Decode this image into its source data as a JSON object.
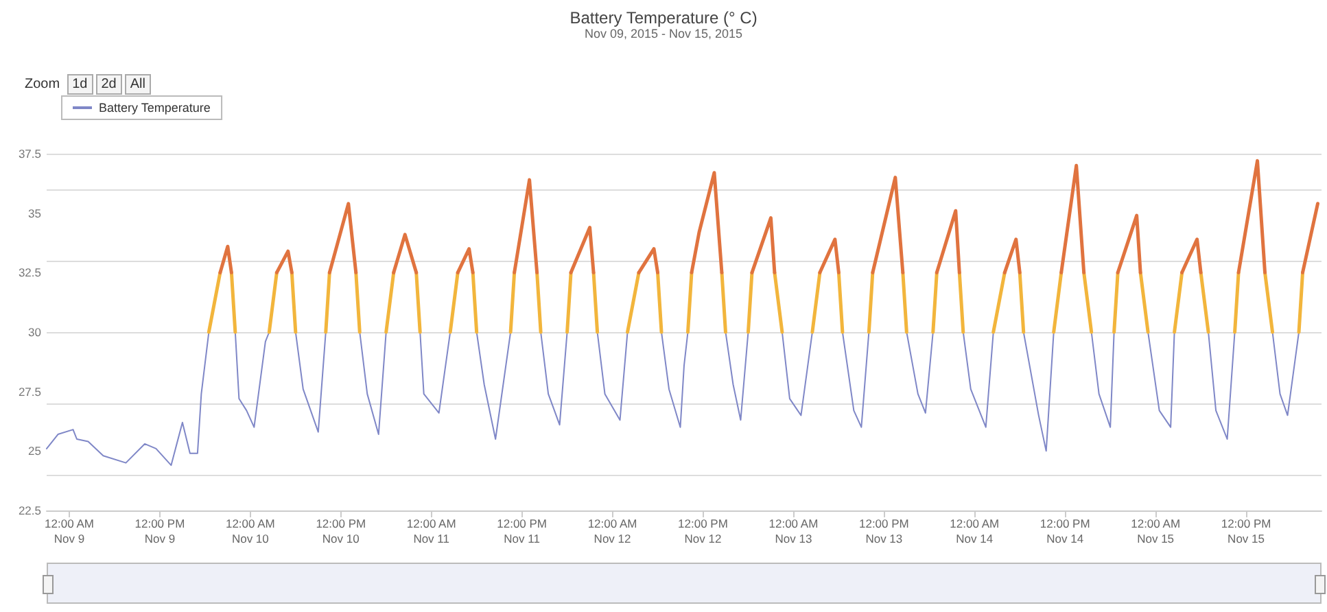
{
  "chart_data": {
    "type": "line",
    "title": "Battery Temperature (° C)",
    "subtitle": "Nov 09, 2015 - Nov 15, 2015",
    "annotations": [
      "Zoom",
      "1d",
      "2d",
      "All"
    ],
    "x": [
      "2015-11-08T21:00",
      "2015-11-08T22:30",
      "2015-11-09T00:30",
      "2015-11-09T01:00",
      "2015-11-09T02:30",
      "2015-11-09T04:30",
      "2015-11-09T07:30",
      "2015-11-09T10:00",
      "2015-11-09T11:30",
      "2015-11-09T13:30",
      "2015-11-09T15:00",
      "2015-11-09T16:00",
      "2015-11-09T17:00",
      "2015-11-09T17:30",
      "2015-11-09T18:30",
      "2015-11-09T20:00",
      "2015-11-09T21:00",
      "2015-11-09T21:30",
      "2015-11-09T22:00",
      "2015-11-09T22:30",
      "2015-11-09T23:30",
      "2015-11-10T00:30",
      "2015-11-10T02:00",
      "2015-11-10T02:30",
      "2015-11-10T03:30",
      "2015-11-10T05:00",
      "2015-11-10T05:30",
      "2015-11-10T06:00",
      "2015-11-10T07:00",
      "2015-11-10T09:00",
      "2015-11-10T10:00",
      "2015-11-10T10:30",
      "2015-11-10T13:00",
      "2015-11-10T14:00",
      "2015-11-10T14:30",
      "2015-11-10T15:30",
      "2015-11-10T17:00",
      "2015-11-10T18:00",
      "2015-11-10T19:00",
      "2015-11-10T20:30",
      "2015-11-10T22:00",
      "2015-11-10T22:30",
      "2015-11-10T23:00",
      "2015-11-11T01:00",
      "2015-11-11T02:30",
      "2015-11-11T03:30",
      "2015-11-11T05:00",
      "2015-11-11T05:30",
      "2015-11-11T06:00",
      "2015-11-11T07:00",
      "2015-11-11T08:30",
      "2015-11-11T10:30",
      "2015-11-11T11:00",
      "2015-11-11T13:00",
      "2015-11-11T14:00",
      "2015-11-11T14:30",
      "2015-11-11T15:30",
      "2015-11-11T17:00",
      "2015-11-11T18:00",
      "2015-11-11T18:30",
      "2015-11-11T21:00",
      "2015-11-11T21:30",
      "2015-11-11T22:00",
      "2015-11-11T23:00",
      "2015-11-12T01:00",
      "2015-11-12T02:00",
      "2015-11-12T03:30",
      "2015-11-12T05:30",
      "2015-11-12T06:00",
      "2015-11-12T06:30",
      "2015-11-12T07:30",
      "2015-11-12T09:00",
      "2015-11-12T09:30",
      "2015-11-12T10:00",
      "2015-11-12T10:30",
      "2015-11-12T11:30",
      "2015-11-12T13:30",
      "2015-11-12T14:30",
      "2015-11-12T15:00",
      "2015-11-12T16:00",
      "2015-11-12T17:00",
      "2015-11-12T18:00",
      "2015-11-12T18:30",
      "2015-11-12T21:00",
      "2015-11-12T21:30",
      "2015-11-12T22:30",
      "2015-11-12T23:30",
      "2015-11-13T01:00",
      "2015-11-13T02:30",
      "2015-11-13T03:30",
      "2015-11-13T05:30",
      "2015-11-13T06:00",
      "2015-11-13T06:30",
      "2015-11-13T08:00",
      "2015-11-13T09:00",
      "2015-11-13T10:00",
      "2015-11-13T10:30",
      "2015-11-13T13:30",
      "2015-11-13T14:30",
      "2015-11-13T15:00",
      "2015-11-13T16:30",
      "2015-11-13T17:30",
      "2015-11-13T18:30",
      "2015-11-13T19:00",
      "2015-11-13T21:30",
      "2015-11-13T22:00",
      "2015-11-13T22:30",
      "2015-11-13T23:30",
      "2015-11-14T01:30",
      "2015-11-14T02:30",
      "2015-11-14T04:00",
      "2015-11-14T05:30",
      "2015-11-14T06:00",
      "2015-11-14T06:30",
      "2015-11-14T08:30",
      "2015-11-14T09:30",
      "2015-11-14T10:30",
      "2015-11-14T11:30",
      "2015-11-14T13:30",
      "2015-11-14T14:30",
      "2015-11-14T15:30",
      "2015-11-14T16:30",
      "2015-11-14T18:00",
      "2015-11-14T18:30",
      "2015-11-14T19:00",
      "2015-11-14T21:30",
      "2015-11-14T22:00",
      "2015-11-14T23:00",
      "2015-11-15T00:30",
      "2015-11-15T02:00",
      "2015-11-15T02:30",
      "2015-11-15T03:30",
      "2015-11-15T05:30",
      "2015-11-15T06:00",
      "2015-11-15T07:00",
      "2015-11-15T08:00",
      "2015-11-15T09:30",
      "2015-11-15T10:30",
      "2015-11-15T11:00",
      "2015-11-15T13:30",
      "2015-11-15T14:30",
      "2015-11-15T15:30",
      "2015-11-15T16:30",
      "2015-11-15T17:30",
      "2015-11-15T19:00",
      "2015-11-15T19:30",
      "2015-11-15T21:30"
    ],
    "series": [
      {
        "name": "Battery Temperature",
        "color": "#7f87c7",
        "values": [
          25.1,
          25.7,
          25.9,
          25.5,
          25.4,
          24.8,
          24.5,
          25.3,
          25.1,
          24.4,
          26.2,
          24.9,
          24.9,
          27.4,
          30.0,
          null,
          null,
          null,
          30.0,
          27.2,
          26.7,
          26.0,
          29.6,
          30.0,
          null,
          null,
          null,
          30.0,
          27.6,
          25.8,
          30.0,
          null,
          null,
          null,
          30.0,
          27.4,
          25.7,
          30.0,
          null,
          null,
          null,
          30.0,
          27.4,
          26.6,
          30.0,
          null,
          null,
          null,
          30.0,
          27.8,
          25.5,
          30.0,
          null,
          null,
          null,
          30.0,
          27.4,
          26.1,
          30.0,
          null,
          null,
          null,
          30.0,
          27.4,
          26.3,
          30.0,
          null,
          null,
          null,
          30.0,
          27.6,
          26.0,
          28.6,
          30.0,
          null,
          null,
          null,
          null,
          30.0,
          27.8,
          26.3,
          30.0,
          null,
          null,
          null,
          30.0,
          27.2,
          26.5,
          30.0,
          null,
          null,
          null,
          30.0,
          26.7,
          26.0,
          30.0,
          null,
          null,
          null,
          30.0,
          27.4,
          26.6,
          30.0,
          null,
          null,
          null,
          30.0,
          27.6,
          26.0,
          30.0,
          null,
          null,
          null,
          30.0,
          26.5,
          25.0,
          30.0,
          null,
          null,
          null,
          30.0,
          27.4,
          26.0,
          30.0,
          null,
          null,
          null,
          30.0,
          26.7,
          26.0,
          30.0,
          null,
          null,
          null,
          30.0,
          26.7,
          25.5,
          30.0,
          null,
          null,
          null,
          30.0,
          27.4,
          26.5,
          30.0,
          null,
          null
        ]
      },
      {
        "color": "#f2b53c",
        "values": [
          null,
          null,
          null,
          null,
          null,
          null,
          null,
          null,
          null,
          null,
          null,
          null,
          null,
          null,
          30.0,
          32.5,
          null,
          32.5,
          30.0,
          null,
          null,
          null,
          null,
          30.0,
          32.5,
          null,
          32.5,
          30.0,
          null,
          null,
          30.0,
          32.5,
          null,
          32.5,
          30.0,
          null,
          null,
          30.0,
          32.5,
          null,
          32.5,
          30.0,
          null,
          null,
          30.0,
          32.5,
          null,
          32.5,
          30.0,
          null,
          null,
          30.0,
          32.5,
          null,
          32.5,
          30.0,
          null,
          null,
          30.0,
          32.5,
          null,
          32.5,
          30.0,
          null,
          null,
          30.0,
          32.5,
          null,
          32.5,
          30.0,
          null,
          null,
          null,
          30.0,
          32.5,
          null,
          null,
          32.5,
          30.0,
          null,
          null,
          30.0,
          32.5,
          null,
          32.5,
          30.0,
          null,
          null,
          30.0,
          32.5,
          null,
          32.5,
          30.0,
          null,
          null,
          30.0,
          32.5,
          null,
          32.5,
          30.0,
          null,
          null,
          30.0,
          32.5,
          null,
          32.5,
          30.0,
          null,
          null,
          30.0,
          32.5,
          null,
          32.5,
          30.0,
          null,
          null,
          30.0,
          32.5,
          null,
          32.5,
          30.0,
          null,
          null,
          30.0,
          32.5,
          null,
          32.5,
          30.0,
          null,
          null,
          30.0,
          32.5,
          null,
          32.5,
          30.0,
          null,
          null,
          30.0,
          32.5,
          null,
          32.5,
          30.0,
          null,
          null,
          30.0,
          32.5,
          null
        ]
      },
      {
        "color": "#e0733f",
        "values": [
          null,
          null,
          null,
          null,
          null,
          null,
          null,
          null,
          null,
          null,
          null,
          null,
          null,
          null,
          null,
          32.5,
          33.6,
          32.5,
          null,
          null,
          null,
          null,
          null,
          null,
          32.5,
          33.4,
          32.5,
          null,
          null,
          null,
          null,
          32.5,
          35.4,
          32.5,
          null,
          null,
          null,
          null,
          32.5,
          34.1,
          32.5,
          null,
          null,
          null,
          null,
          32.5,
          33.5,
          32.5,
          null,
          null,
          null,
          null,
          32.5,
          36.4,
          32.5,
          null,
          null,
          null,
          null,
          32.5,
          34.4,
          32.5,
          null,
          null,
          null,
          null,
          32.5,
          33.5,
          32.5,
          null,
          null,
          null,
          null,
          null,
          32.5,
          34.2,
          36.7,
          32.5,
          null,
          null,
          null,
          null,
          32.5,
          34.8,
          32.5,
          null,
          null,
          null,
          null,
          32.5,
          33.9,
          32.5,
          null,
          null,
          null,
          null,
          32.5,
          36.5,
          32.5,
          null,
          null,
          null,
          null,
          32.5,
          35.1,
          32.5,
          null,
          null,
          null,
          null,
          32.5,
          33.9,
          32.5,
          null,
          null,
          null,
          null,
          32.5,
          37.0,
          32.5,
          null,
          null,
          null,
          null,
          32.5,
          34.9,
          32.5,
          null,
          null,
          null,
          null,
          32.5,
          33.9,
          32.5,
          null,
          null,
          null,
          null,
          32.5,
          37.2,
          32.5,
          null,
          null,
          null,
          null,
          32.5,
          35.4
        ]
      }
    ],
    "xlim": [
      "2015-11-08T21:00",
      "2015-11-15T22:00"
    ],
    "xticks": [
      {
        "value": "2015-11-09T00:00",
        "label": "12:00 AM\nNov 9"
      },
      {
        "value": "2015-11-09T12:00",
        "label": "12:00 PM\nNov 9"
      },
      {
        "value": "2015-11-10T00:00",
        "label": "12:00 AM\nNov 10"
      },
      {
        "value": "2015-11-10T12:00",
        "label": "12:00 PM\nNov 10"
      },
      {
        "value": "2015-11-11T00:00",
        "label": "12:00 AM\nNov 11"
      },
      {
        "value": "2015-11-11T12:00",
        "label": "12:00 PM\nNov 11"
      },
      {
        "value": "2015-11-12T00:00",
        "label": "12:00 AM\nNov 12"
      },
      {
        "value": "2015-11-12T12:00",
        "label": "12:00 PM\nNov 12"
      },
      {
        "value": "2015-11-13T00:00",
        "label": "12:00 AM\nNov 13"
      },
      {
        "value": "2015-11-13T12:00",
        "label": "12:00 PM\nNov 13"
      },
      {
        "value": "2015-11-14T00:00",
        "label": "12:00 AM\nNov 14"
      },
      {
        "value": "2015-11-14T12:00",
        "label": "12:00 PM\nNov 14"
      },
      {
        "value": "2015-11-15T00:00",
        "label": "12:00 AM\nNov 15"
      },
      {
        "value": "2015-11-15T12:00",
        "label": "12:00 PM\nNov 15"
      }
    ],
    "ylim": [
      22.5,
      37.5
    ],
    "yticks": [
      22.5,
      25,
      27.5,
      30,
      32.5,
      35,
      37.5
    ],
    "grid": "y",
    "legend": "top left"
  }
}
